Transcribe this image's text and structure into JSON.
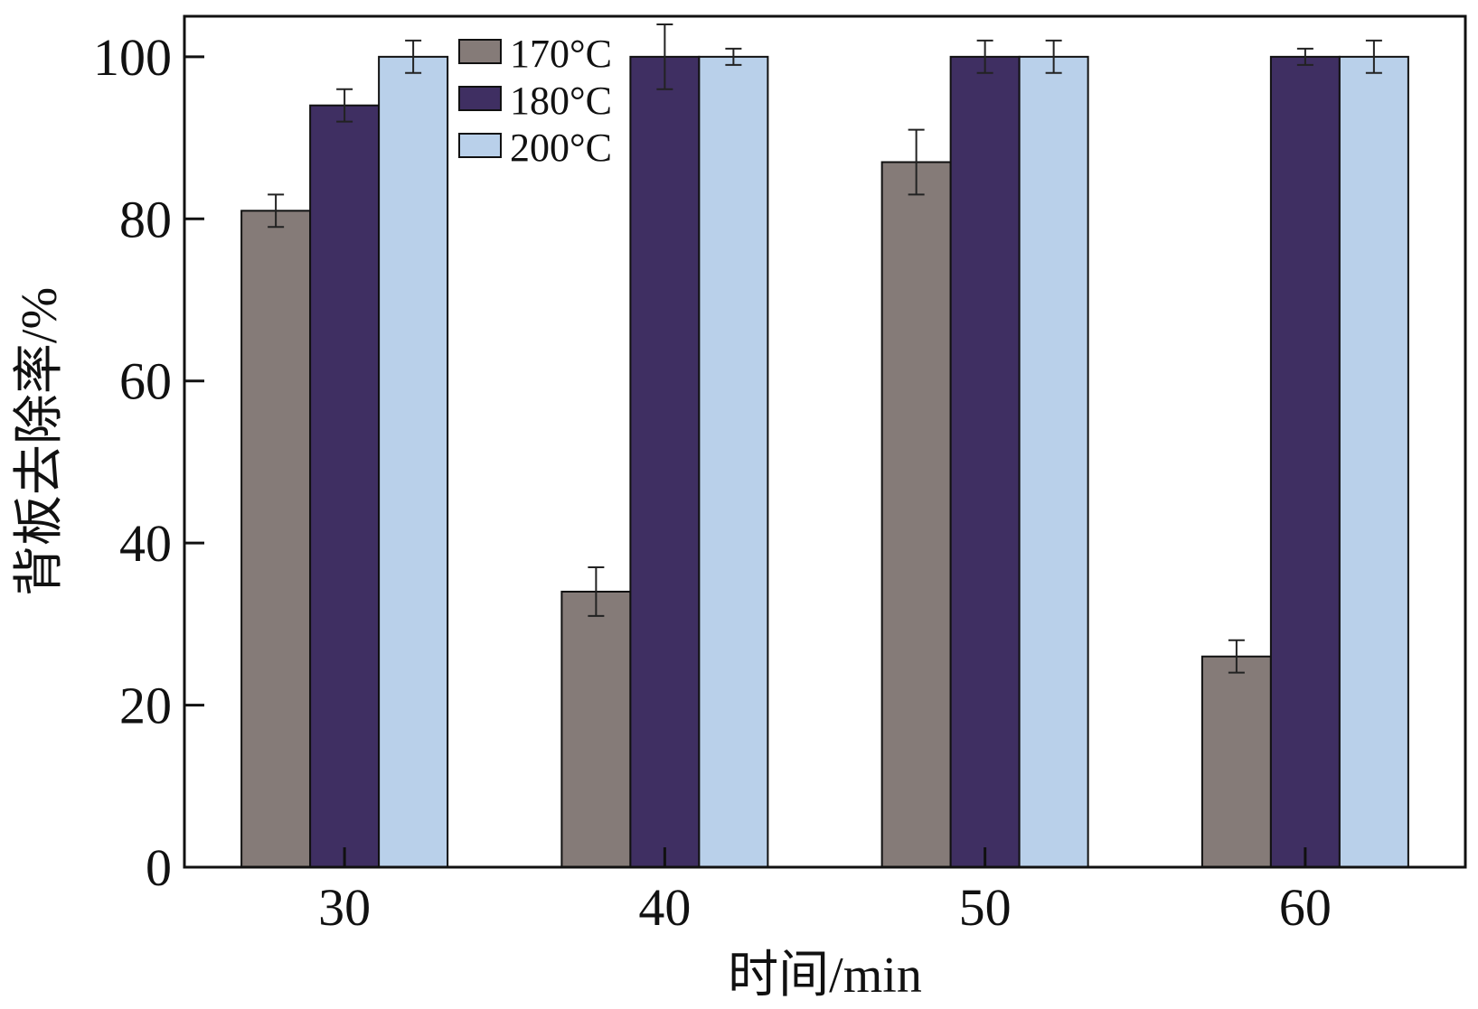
{
  "chart_data": {
    "type": "bar",
    "title": "",
    "xlabel": "时间/min",
    "ylabel": "背板去除率/%",
    "categories": [
      "30",
      "40",
      "50",
      "60"
    ],
    "ylim": [
      0,
      105
    ],
    "yticks": [
      0,
      20,
      40,
      60,
      80,
      100
    ],
    "grid": false,
    "legend_position": "top-left",
    "series": [
      {
        "name": "170°C",
        "color": "#857b78",
        "values": [
          81,
          34,
          87,
          26
        ],
        "errors": [
          2,
          3,
          4,
          2
        ]
      },
      {
        "name": "180°C",
        "color": "#3f2f62",
        "values": [
          94,
          100,
          100,
          100
        ],
        "errors": [
          2,
          4,
          2,
          1
        ]
      },
      {
        "name": "200°C",
        "color": "#b9d0ea",
        "values": [
          100,
          100,
          100,
          100
        ],
        "errors": [
          2,
          1,
          2,
          2
        ]
      }
    ]
  }
}
